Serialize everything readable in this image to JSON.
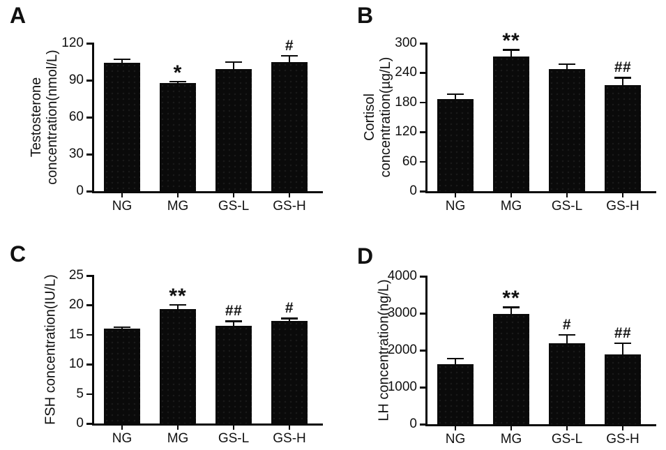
{
  "figure": {
    "background": "#ffffff",
    "bar_color": "#0a0a0a",
    "axis_color": "#0a0a0a",
    "text_color": "#111111"
  },
  "chart_data": [
    {
      "type": "bar",
      "panel_label": "A",
      "title": "",
      "ylabel": "Testosterone concentration(nmol/L)",
      "ylabel_lines": [
        "Testosterone",
        "concentration(nmol/L)"
      ],
      "xlabel": "",
      "categories": [
        "NG",
        "MG",
        "GS-L",
        "GS-H"
      ],
      "values": [
        104,
        88,
        99,
        105
      ],
      "errors": [
        3,
        1,
        6,
        5
      ],
      "annotations": [
        "",
        "*",
        "",
        "#"
      ],
      "ylim": [
        0,
        120
      ],
      "yticks": [
        0,
        30,
        60,
        90,
        120
      ],
      "grid": false,
      "legend": false
    },
    {
      "type": "bar",
      "panel_label": "B",
      "title": "",
      "ylabel": "Cortisol concentration(µg/L)",
      "ylabel_lines": [
        "Cortisol",
        "concentration(µg/L)"
      ],
      "xlabel": "",
      "categories": [
        "NG",
        "MG",
        "GS-L",
        "GS-H"
      ],
      "values": [
        187,
        273,
        247,
        215
      ],
      "errors": [
        10,
        14,
        11,
        15
      ],
      "annotations": [
        "",
        "**",
        "",
        "##"
      ],
      "ylim": [
        0,
        300
      ],
      "yticks": [
        0,
        60,
        120,
        180,
        240,
        300
      ],
      "grid": false,
      "legend": false
    },
    {
      "type": "bar",
      "panel_label": "C",
      "title": "",
      "ylabel": "FSH concentration(IU/L)",
      "ylabel_lines": [
        "FSH concentration(IU/L)"
      ],
      "xlabel": "",
      "categories": [
        "NG",
        "MG",
        "GS-L",
        "GS-H"
      ],
      "values": [
        16,
        19.3,
        16.5,
        17.3
      ],
      "errors": [
        0.3,
        0.8,
        0.8,
        0.5
      ],
      "annotations": [
        "",
        "**",
        "##",
        "#"
      ],
      "ylim": [
        0,
        25
      ],
      "yticks": [
        0,
        5,
        10,
        15,
        20,
        25
      ],
      "grid": false,
      "legend": false
    },
    {
      "type": "bar",
      "panel_label": "D",
      "title": "",
      "ylabel": "LH concentration(ng/L)",
      "ylabel_lines": [
        "LH concentration(ng/L)"
      ],
      "xlabel": "",
      "categories": [
        "NG",
        "MG",
        "GS-L",
        "GS-H"
      ],
      "values": [
        1620,
        2990,
        2180,
        1890
      ],
      "errors": [
        160,
        175,
        240,
        300
      ],
      "annotations": [
        "",
        "**",
        "#",
        "##"
      ],
      "ylim": [
        0,
        4000
      ],
      "yticks": [
        0,
        1000,
        2000,
        3000,
        4000
      ],
      "grid": false,
      "legend": false
    }
  ]
}
